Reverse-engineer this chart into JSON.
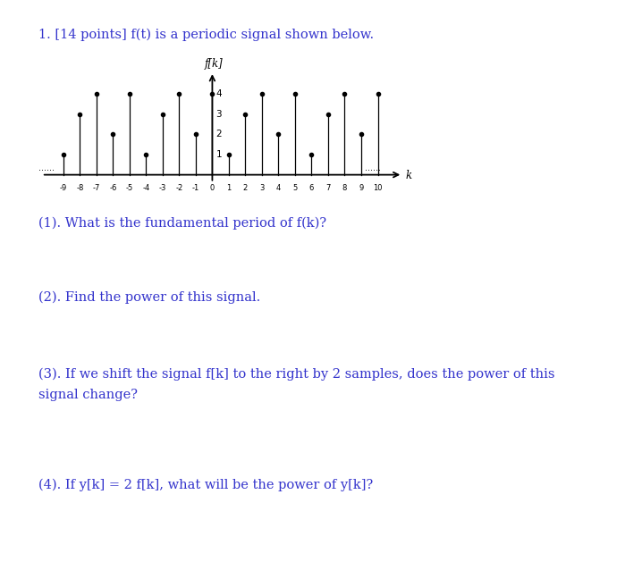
{
  "title_line1": "1. [14 points] f(t) is a periodic signal shown below.",
  "signal_ylabel": "f[k]",
  "signal_xlabel": "k",
  "background_color": "#ffffff",
  "text_color": "#000000",
  "blue_color": "#3333cc",
  "k_min": -9,
  "k_max": 10,
  "period": 5,
  "one_period_values": [
    4,
    1,
    3,
    4,
    2
  ],
  "question1": "(1). What is the fundamental period of f(k)?",
  "question2": "(2). Find the power of this signal.",
  "question3_line1": "(3). If we shift the signal f[k] to the right by 2 samples, does the power of this",
  "question3_line2": "signal change?",
  "question4": "(4). If y[k] = 2 f[k], what will be the power of y[k]?"
}
